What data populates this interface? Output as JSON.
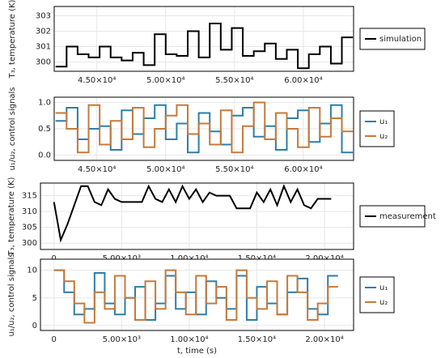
{
  "chart_data": [
    {
      "type": "line",
      "drawstyle": "steps-post",
      "ylabel": "T₃, temperature (K)",
      "legend": "outside right",
      "grid": true,
      "x": [
        42000,
        42800,
        43600,
        44400,
        45200,
        46000,
        46800,
        47600,
        48400,
        49200,
        50000,
        50800,
        51600,
        52400,
        53200,
        54000,
        54800,
        55600,
        56400,
        57200,
        58000,
        58800,
        59600,
        60400,
        61200,
        62000,
        62800
      ],
      "series": [
        {
          "name": "simulation",
          "color": "#000000",
          "values": [
            299.7,
            301.0,
            300.5,
            300.3,
            301.0,
            300.3,
            300.1,
            300.6,
            299.8,
            301.8,
            300.5,
            300.4,
            302.0,
            300.3,
            302.5,
            300.8,
            302.2,
            300.4,
            300.7,
            301.2,
            300.2,
            300.8,
            299.6,
            300.5,
            301.0,
            299.9,
            301.6
          ]
        }
      ],
      "xlim": [
        41900,
        63650
      ],
      "ylim": [
        299.4,
        303.6
      ],
      "xticks": [
        {
          "value": 45000,
          "label": "4.50×10⁴"
        },
        {
          "value": 50000,
          "label": "5.00×10⁴"
        },
        {
          "value": 55000,
          "label": "5.50×10⁴"
        },
        {
          "value": 60000,
          "label": "6.00×10⁴"
        }
      ],
      "yticks": [
        300,
        301,
        302,
        303
      ]
    },
    {
      "type": "line",
      "drawstyle": "steps-post",
      "ylabel": "u₁/u₂, control signals",
      "legend": "outside right",
      "grid": true,
      "x": [
        42000,
        42800,
        43600,
        44400,
        45200,
        46000,
        46800,
        47600,
        48400,
        49200,
        50000,
        50800,
        51600,
        52400,
        53200,
        54000,
        54800,
        55600,
        56400,
        57200,
        58000,
        58800,
        59600,
        60400,
        61200,
        62000,
        62800
      ],
      "series": [
        {
          "name": "u₁",
          "color": "#2f7ea8",
          "values": [
            0.65,
            0.9,
            0.3,
            0.5,
            0.55,
            0.1,
            0.85,
            0.4,
            0.7,
            0.95,
            0.3,
            0.6,
            0.05,
            0.8,
            0.45,
            0.2,
            0.75,
            0.9,
            0.35,
            0.55,
            0.1,
            0.7,
            0.85,
            0.25,
            0.6,
            0.95,
            0.05
          ]
        },
        {
          "name": "u₂",
          "color": "#c47a3c",
          "values": [
            0.8,
            0.5,
            0.05,
            0.95,
            0.2,
            0.65,
            0.3,
            0.9,
            0.15,
            0.5,
            0.75,
            0.95,
            0.4,
            0.6,
            0.2,
            0.85,
            0.05,
            0.55,
            1.0,
            0.3,
            0.8,
            0.5,
            0.15,
            0.9,
            0.35,
            0.7,
            0.45
          ]
        }
      ],
      "xlim": [
        41900,
        63650
      ],
      "ylim": [
        -0.1,
        1.1
      ],
      "xticks": [
        {
          "value": 45000,
          "label": "4.50×10⁴"
        },
        {
          "value": 50000,
          "label": "5.00×10⁴"
        },
        {
          "value": 55000,
          "label": "5.50×10⁴"
        },
        {
          "value": 60000,
          "label": "6.00×10⁴"
        }
      ],
      "yticks": [
        {
          "value": 0,
          "label": "0.0"
        },
        0.5,
        {
          "value": 1,
          "label": "1.0"
        }
      ]
    },
    {
      "type": "line",
      "drawstyle": "linear",
      "ylabel": "T₃, temperature (K)",
      "legend": "outside right",
      "grid": true,
      "x": [
        0,
        500,
        1000,
        1500,
        2000,
        2500,
        3000,
        3500,
        4000,
        4500,
        5000,
        5500,
        6000,
        6500,
        7000,
        7500,
        8000,
        8500,
        9000,
        9500,
        10000,
        10500,
        11000,
        11500,
        12000,
        12500,
        13000,
        13500,
        14000,
        14500,
        15000,
        15500,
        16000,
        16500,
        17000,
        17500,
        18000,
        18500,
        19000,
        19500,
        20000,
        20500
      ],
      "series": [
        {
          "name": "measurement",
          "color": "#000000",
          "values": [
            313,
            301,
            306,
            312,
            318,
            318,
            313,
            312,
            317,
            314,
            313,
            313,
            313,
            313,
            318,
            314,
            313,
            317,
            313,
            318,
            314,
            317,
            313,
            316,
            315,
            315,
            315,
            311,
            311,
            311,
            316,
            313,
            317,
            312,
            318,
            313,
            317,
            312,
            311,
            314,
            314,
            314
          ]
        }
      ],
      "xlim": [
        -1000,
        22150
      ],
      "ylim": [
        298,
        319
      ],
      "xticks": [
        0,
        {
          "value": 5000,
          "label": "5.00×10³"
        },
        {
          "value": 10000,
          "label": "1.00×10⁴"
        },
        {
          "value": 15000,
          "label": "1.50×10⁴"
        },
        {
          "value": 20000,
          "label": "2.00×10⁴"
        }
      ],
      "yticks": [
        300,
        305,
        310,
        315
      ]
    },
    {
      "type": "line",
      "drawstyle": "steps-post",
      "ylabel": "u₁/u₂, control signals",
      "xlabel": "t, time (s)",
      "legend": "outside right",
      "grid": true,
      "x": [
        0,
        750,
        1500,
        2250,
        3000,
        3750,
        4500,
        5250,
        6000,
        6750,
        7500,
        8250,
        9000,
        9750,
        10500,
        11250,
        12000,
        12750,
        13500,
        14250,
        15000,
        15750,
        16500,
        17250,
        18000,
        18750,
        19500,
        20250
      ],
      "series": [
        {
          "name": "u₁",
          "color": "#2f7ea8",
          "values": [
            10,
            6,
            2,
            3,
            9.5,
            4,
            2,
            5,
            7,
            1,
            4,
            9,
            3,
            6,
            2,
            8,
            5,
            3,
            9,
            1,
            7,
            4,
            2,
            6,
            8.5,
            3,
            2,
            9
          ]
        },
        {
          "name": "u₂",
          "color": "#c47a3c",
          "values": [
            10,
            8,
            4,
            0.5,
            6,
            3,
            9,
            5,
            1,
            8,
            3,
            10,
            6,
            2,
            9,
            4,
            7,
            1,
            10,
            5,
            3,
            8,
            2,
            9,
            6,
            1,
            4,
            7
          ]
        }
      ],
      "xlim": [
        -1000,
        22150
      ],
      "ylim": [
        -0.9,
        12
      ],
      "xticks": [
        0,
        {
          "value": 5000,
          "label": "5.00×10³"
        },
        {
          "value": 10000,
          "label": "1.00×10⁴"
        },
        {
          "value": 15000,
          "label": "1.50×10⁴"
        },
        {
          "value": 20000,
          "label": "2.00×10⁴"
        }
      ],
      "yticks": [
        0,
        5,
        10
      ]
    }
  ]
}
